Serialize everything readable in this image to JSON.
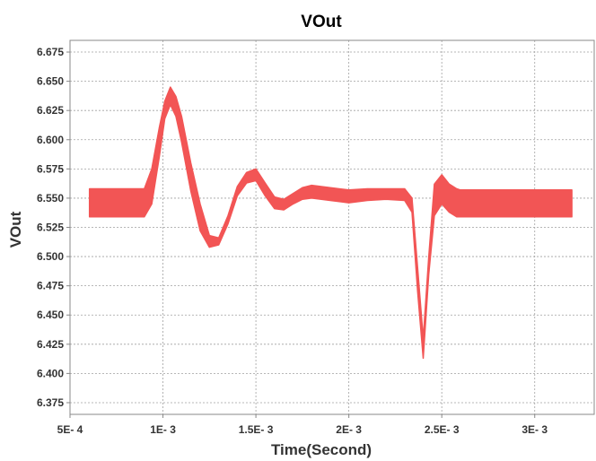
{
  "chart_data": {
    "type": "line",
    "title": "VOut",
    "xlabel": "Time(Second)",
    "ylabel": "VOut",
    "xlim": [
      0.0005,
      0.00332
    ],
    "ylim": [
      6.365,
      6.685
    ],
    "grid": true,
    "legend": "none",
    "x_ticks": [
      {
        "value": 0.0005,
        "label": "5E- 4"
      },
      {
        "value": 0.001,
        "label": "1E- 3"
      },
      {
        "value": 0.0015,
        "label": "1.5E- 3"
      },
      {
        "value": 0.002,
        "label": "2E- 3"
      },
      {
        "value": 0.0025,
        "label": "2.5E- 3"
      },
      {
        "value": 0.003,
        "label": "3E- 3"
      }
    ],
    "y_ticks": [
      {
        "value": 6.375,
        "label": "6.375"
      },
      {
        "value": 6.4,
        "label": "6.400"
      },
      {
        "value": 6.425,
        "label": "6.425"
      },
      {
        "value": 6.45,
        "label": "6.450"
      },
      {
        "value": 6.475,
        "label": "6.475"
      },
      {
        "value": 6.5,
        "label": "6.500"
      },
      {
        "value": 6.525,
        "label": "6.525"
      },
      {
        "value": 6.55,
        "label": "6.550"
      },
      {
        "value": 6.575,
        "label": "6.575"
      },
      {
        "value": 6.6,
        "label": "6.600"
      },
      {
        "value": 6.625,
        "label": "6.625"
      },
      {
        "value": 6.65,
        "label": "6.650"
      },
      {
        "value": 6.675,
        "label": "6.675"
      }
    ],
    "series": [
      {
        "color": "#f25555",
        "x": [
          0.000605,
          0.0009,
          0.00094,
          0.00098,
          0.00101,
          0.00104,
          0.00107,
          0.0011,
          0.00115,
          0.0012,
          0.00125,
          0.0013,
          0.00135,
          0.0014,
          0.00145,
          0.0015,
          0.00155,
          0.0016,
          0.00165,
          0.0017,
          0.00175,
          0.0018,
          0.0019,
          0.002,
          0.0021,
          0.0022,
          0.0023,
          0.00234,
          0.00237,
          0.0024,
          0.00243,
          0.00246,
          0.0025,
          0.00254,
          0.00258,
          0.0026,
          0.0027,
          0.0028,
          0.0029,
          0.003,
          0.0031,
          0.0032
        ],
        "upper": [
          6.558,
          6.558,
          6.575,
          6.61,
          6.633,
          6.645,
          6.637,
          6.62,
          6.58,
          6.545,
          6.518,
          6.516,
          6.535,
          6.56,
          6.572,
          6.575,
          6.563,
          6.551,
          6.549,
          6.554,
          6.559,
          6.561,
          6.559,
          6.557,
          6.558,
          6.558,
          6.558,
          6.55,
          6.49,
          6.43,
          6.5,
          6.562,
          6.57,
          6.562,
          6.558,
          6.557,
          6.557,
          6.557,
          6.557,
          6.557,
          6.557,
          6.557
        ],
        "lower": [
          6.534,
          6.534,
          6.545,
          6.585,
          6.618,
          6.63,
          6.62,
          6.598,
          6.556,
          6.522,
          6.508,
          6.51,
          6.528,
          6.552,
          6.563,
          6.565,
          6.552,
          6.541,
          6.54,
          6.545,
          6.549,
          6.55,
          6.548,
          6.546,
          6.548,
          6.549,
          6.548,
          6.538,
          6.47,
          6.413,
          6.485,
          6.535,
          6.545,
          6.538,
          6.534,
          6.534,
          6.534,
          6.534,
          6.534,
          6.534,
          6.534,
          6.534
        ]
      }
    ]
  }
}
